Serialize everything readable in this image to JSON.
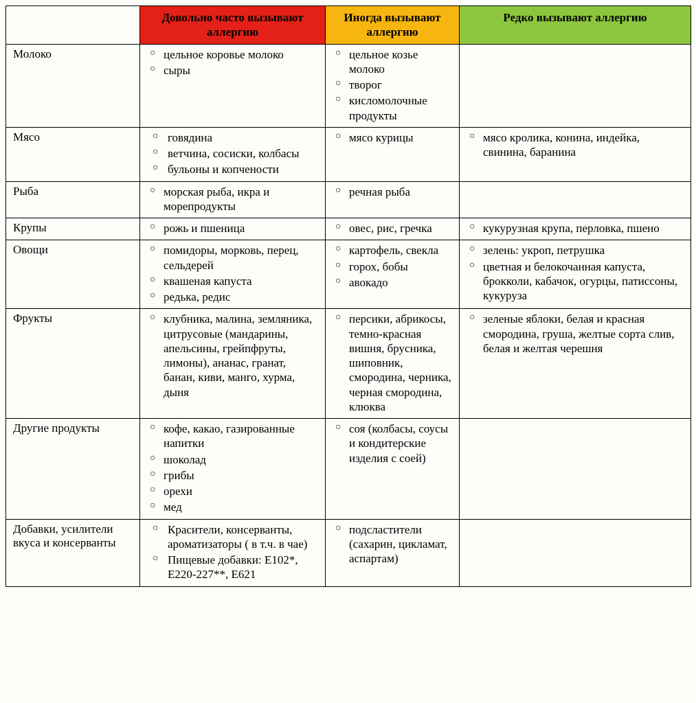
{
  "header": {
    "col1": {
      "text": "Довольно часто вызывают аллергию",
      "bg": "#e32118",
      "fg": "#000000"
    },
    "col2": {
      "text": "Иногда вызывают аллергию",
      "bg": "#f7b50f",
      "fg": "#000000"
    },
    "col3": {
      "text": "Редко вызывают аллергию",
      "bg": "#8cc63f",
      "fg": "#000000"
    }
  },
  "rows": [
    {
      "label": "Молоко",
      "often": [
        "цельное коровье молоко",
        "сыры"
      ],
      "sometimes": [
        "цельное козье молоко",
        "творог",
        "кисломолочные продукты"
      ],
      "rarely": []
    },
    {
      "label": "Мясо",
      "often": [
        "говядина",
        "ветчина, сосиски, колбасы",
        "бульоны и копчености"
      ],
      "sometimes": [
        "мясо курицы"
      ],
      "rarely": [
        "мясо кролика, конина, индейка, свинина, баранина"
      ]
    },
    {
      "label": "Рыба",
      "often": [
        "морская рыба, икра и морепродукты"
      ],
      "sometimes": [
        "речная рыба"
      ],
      "rarely": []
    },
    {
      "label": "Крупы",
      "often": [
        "рожь и пшеница"
      ],
      "sometimes": [
        "овес, рис, гречка"
      ],
      "rarely": [
        "кукурузная крупа, перловка, пшено"
      ]
    },
    {
      "label": "Овощи",
      "often": [
        "помидоры, морковь, перец, сельдерей",
        "квашеная капуста",
        "редька, редис"
      ],
      "sometimes": [
        "картофель, свекла",
        "горох, бобы",
        "авокадо"
      ],
      "rarely": [
        "зелень: укроп, петрушка",
        "цветная и белокочанная капуста, брокколи, кабачок, огурцы, патиссоны, кукуруза"
      ]
    },
    {
      "label": "Фрукты",
      "often": [
        "клубника, малина, земляника, цитрусовые (мандарины, апельсины, грейпфруты, лимоны), ананас, гранат, банан, киви, манго, хурма, дыня"
      ],
      "sometimes": [
        "персики, абрикосы, темно-красная вишня, брусника, шиповник, смородина, черника, черная смородина, клюква"
      ],
      "rarely": [
        "зеленые яблоки, белая и красная смородина, груша, желтые сорта слив, белая и желтая черешня"
      ]
    },
    {
      "label": "Другие продукты",
      "often": [
        "кофе, какао, газированные напитки",
        "шоколад",
        "грибы",
        "орехи",
        "мед"
      ],
      "sometimes": [
        "соя (колбасы, соусы и кондитерские изделия с соей)"
      ],
      "rarely": []
    },
    {
      "label": "Добавки, усилители вкуса и консерванты",
      "often": [
        "Красители, консерванты, ароматизаторы ( в т.ч. в чае)",
        "Пищевые добавки: Е102*, Е220-227**, Е621"
      ],
      "sometimes": [
        "подсластители (сахарин, цикламат, аспартам)"
      ],
      "rarely": []
    }
  ]
}
